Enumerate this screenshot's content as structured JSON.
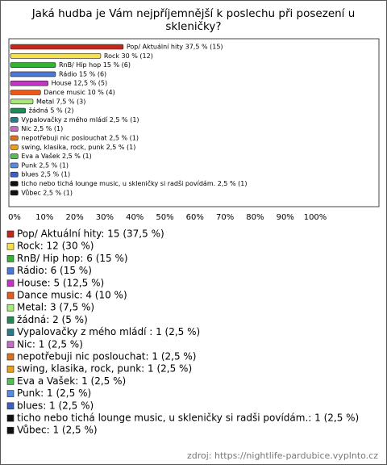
{
  "chart_data": {
    "type": "bar",
    "orientation": "horizontal",
    "title": "Jaká hudba je Vám nejpříjemnější k poslechu při posezení u skleničky?",
    "categories": [
      "Pop/ Aktuální hity: 15 (37,5 %)",
      "Rock: 12 (30 %)",
      "RnB/ Hip hop: 6 (15 %)",
      "Rádio: 6 (15 %)",
      "House: 5 (12,5 %)",
      "Dance music: 4 (10 %)",
      "Metal: 3 (7,5 %)",
      "žádná: 2 (5 %)",
      "Vypalovačky z mého mládí : 1 (2,5 %)",
      "Nic: 1 (2,5 %)",
      "nepotřebuji nic poslouchat: 1 (2,5 %)",
      "swing, klasika, rock, punk: 1 (2,5 %)",
      "Eva a Vašek: 1 (2,5 %)",
      "Punk: 1 (2,5 %)",
      "blues: 1 (2,5 %)",
      "ticho nebo tichá lounge music, u skleničky si radši povídám.: 1 (2,5 %)",
      "Vůbec: 1 (2,5 %)"
    ],
    "values": [
      37.5,
      30,
      15,
      15,
      12.5,
      10,
      7.5,
      5,
      2.5,
      2.5,
      2.5,
      2.5,
      2.5,
      2.5,
      2.5,
      2.5,
      2.5
    ],
    "value_labels": [
      "Pop/ Aktuální hity 37,5 % (15)",
      "Rock 30 % (12)",
      "RnB/ Hip hop 15 % (6)",
      "Rádio 15 % (6)",
      "House 12,5 % (5)",
      "Dance music 10 % (4)",
      "Metal 7,5 % (3)",
      "žádná 5 % (2)",
      "Vypalovačky z mého mládí  2,5 % (1)",
      "Nic 2,5 % (1)",
      "nepotřebuji nic poslouchat 2,5 % (1)",
      "swing, klasika, rock, punk 2,5 % (1)",
      "Eva a Vašek 2,5 % (1)",
      "Punk 2,5 % (1)",
      "blues 2,5 % (1)",
      "ticho nebo tichá lounge music, u skleničky si radši povídám. 2,5 % (1)",
      "Vůbec 2,5 % (1)"
    ],
    "colors": [
      "#c0291c",
      "#f5e04a",
      "#32b432",
      "#4a78d6",
      "#c832c8",
      "#e85a1a",
      "#a8e878",
      "#1f8a5a",
      "#2a7a8a",
      "#c86ac8",
      "#d87020",
      "#e8a020",
      "#50c050",
      "#5a8ae0",
      "#3a60c8",
      "#111111",
      "#111111"
    ],
    "xlim": [
      0,
      100
    ],
    "xticks": [
      {
        "value": 0,
        "label": "0%"
      },
      {
        "value": 10,
        "label": "10%"
      },
      {
        "value": 20,
        "label": "20%"
      },
      {
        "value": 30,
        "label": "30%"
      },
      {
        "value": 40,
        "label": "40%"
      },
      {
        "value": 50,
        "label": "50%"
      },
      {
        "value": 60,
        "label": "60%"
      },
      {
        "value": 70,
        "label": "70%"
      },
      {
        "value": 80,
        "label": "80%"
      },
      {
        "value": 90,
        "label": "90%"
      },
      {
        "value": 100,
        "label": "100%"
      }
    ],
    "source": "zdroj: https://nightlife-pardubice.vyplnto.cz"
  }
}
